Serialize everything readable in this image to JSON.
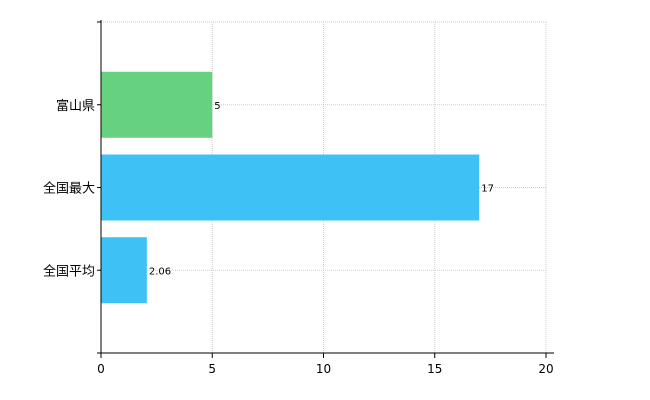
{
  "chart_data": {
    "type": "bar",
    "orientation": "horizontal",
    "categories": [
      "富山県",
      "全国最大",
      "全国平均"
    ],
    "values": [
      5,
      17,
      2.06
    ],
    "value_labels": [
      "5",
      "17",
      "2.06"
    ],
    "bar_colors": [
      "#66d17f",
      "#3ec1f5",
      "#3ec1f5"
    ],
    "xlim": [
      0,
      20
    ],
    "xticks": [
      0,
      5,
      10,
      15,
      20
    ],
    "grid": true,
    "title": "",
    "xlabel": "",
    "ylabel": ""
  }
}
